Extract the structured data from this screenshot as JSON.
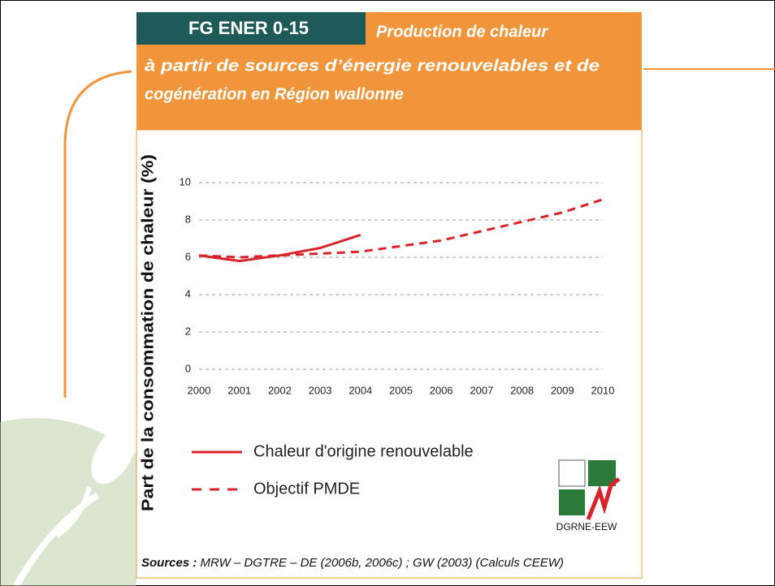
{
  "header": {
    "code": "FG ENER 0-15",
    "title_lines": [
      "Production de chaleur",
      "à partir de sources d’énergie renouvelables et de",
      "cogénération en Région wallonne"
    ]
  },
  "chart_data": {
    "type": "line",
    "ylabel": "Part de la consommation de chaleur (%)",
    "x": [
      2000,
      2001,
      2002,
      2003,
      2004,
      2005,
      2006,
      2007,
      2008,
      2009,
      2010
    ],
    "xlim": [
      2000,
      2010
    ],
    "xticks": [
      2000,
      2001,
      2002,
      2003,
      2004,
      2005,
      2006,
      2007,
      2008,
      2009,
      2010
    ],
    "ylim": [
      0,
      10
    ],
    "yticks": [
      0,
      2,
      4,
      6,
      8,
      10
    ],
    "grid": true,
    "series": [
      {
        "name": "Chaleur d'origine renouvelable",
        "color": "#d9232a",
        "style": "solid",
        "values": [
          6.1,
          5.8,
          6.1,
          6.5,
          7.2,
          null,
          null,
          null,
          null,
          null,
          null
        ]
      },
      {
        "name": "Objectif PMDE",
        "color": "#d9232a",
        "style": "dashed",
        "values": [
          6.1,
          6.0,
          6.1,
          6.2,
          6.3,
          6.6,
          6.9,
          7.4,
          7.9,
          8.4,
          9.1
        ]
      }
    ]
  },
  "logo": "DGRNE-EEW",
  "sources": {
    "label": "Sources :",
    "text": "MRW – DGTRE – DE (2006b, 2006c) ; GW (2003) (Calculs CEEW)"
  }
}
